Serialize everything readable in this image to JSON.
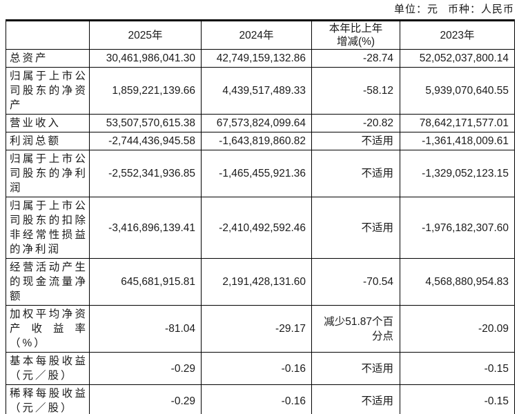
{
  "page": {
    "unit_label": "单位：元",
    "currency_label": "币种：人民币"
  },
  "colors": {
    "text": "#1a1a1a",
    "border": "#000000",
    "background": "#ffffff"
  },
  "table": {
    "columns": [
      "",
      "2025年",
      "2024年",
      "本年比上年增减(%)",
      "2023年"
    ],
    "rows": [
      {
        "label": "总资产",
        "y2025": "30,461,986,041.30",
        "y2024": "42,749,159,132.86",
        "change": "-28.74",
        "y2023": "52,052,037,800.14"
      },
      {
        "label": "归属于上市公司股东的净资产",
        "y2025": "1,859,221,139.66",
        "y2024": "4,439,517,489.33",
        "change": "-58.12",
        "y2023": "5,939,070,640.55"
      },
      {
        "label": "营业收入",
        "y2025": "53,507,570,615.38",
        "y2024": "67,573,824,099.64",
        "change": "-20.82",
        "y2023": "78,642,171,577.01"
      },
      {
        "label": "利润总额",
        "y2025": "-2,744,436,945.58",
        "y2024": "-1,643,819,860.82",
        "change": "不适用",
        "y2023": "-1,361,418,009.61"
      },
      {
        "label": "归属于上市公司股东的净利润",
        "y2025": "-2,552,341,936.85",
        "y2024": "-1,465,455,921.36",
        "change": "不适用",
        "y2023": "-1,329,052,123.15"
      },
      {
        "label": "归属于上市公司股东的扣除非经常性损益的净利润",
        "y2025": "-3,416,896,139.41",
        "y2024": "-2,410,492,592.46",
        "change": "不适用",
        "y2023": "-1,976,182,307.60"
      },
      {
        "label": "经营活动产生的现金流量净额",
        "y2025": "645,681,915.81",
        "y2024": "2,191,428,131.60",
        "change": "-70.54",
        "y2023": "4,568,880,954.83"
      },
      {
        "label": "加权平均净资产收益率（%）",
        "y2025": "-81.04",
        "y2024": "-29.17",
        "change": "减少51.87个百分点",
        "y2023": "-20.09"
      },
      {
        "label": "基本每股收益（元／股）",
        "y2025": "-0.29",
        "y2024": "-0.16",
        "change": "不适用",
        "y2023": "-0.15"
      },
      {
        "label": "稀释每股收益（元／股）",
        "y2025": "-0.29",
        "y2024": "-0.16",
        "change": "不适用",
        "y2023": "-0.15"
      }
    ]
  }
}
